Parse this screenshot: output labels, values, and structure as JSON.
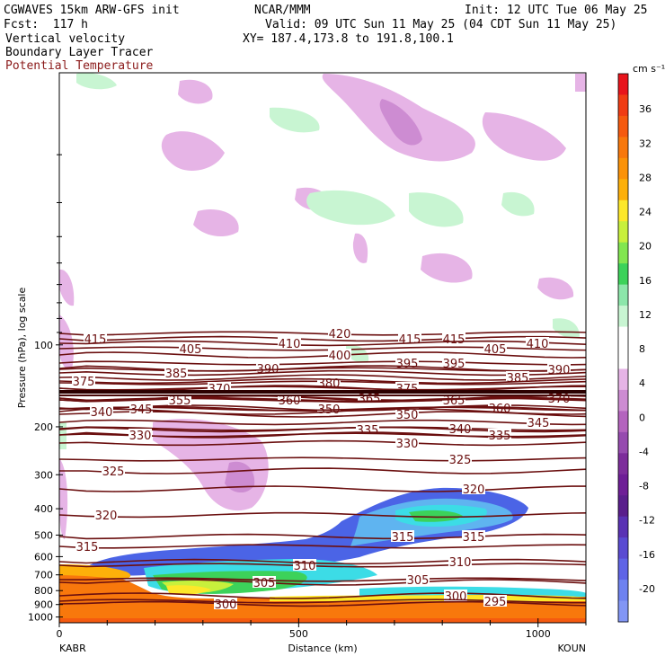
{
  "header": {
    "model": "CGWAVES 15km ARW-GFS init",
    "org": "NCAR/MMM",
    "init": "Init: 12 UTC Tue 06 May 25",
    "fcst": "Fcst:  117 h",
    "valid": "Valid: 09 UTC Sun 11 May 25 (04 CDT Sun 11 May 25)",
    "xy": "XY= 187.4,173.8 to 191.8,100.1",
    "field1": "Vertical velocity",
    "field2": "Boundary Layer Tracer",
    "field3": "Potential Temperature"
  },
  "colors": {
    "theta_line": "#6b0f0f",
    "field3_text": "#8b1a1a"
  },
  "chart_data": {
    "type": "contour",
    "xlabel": "Distance (km)",
    "ylabel": "Pressure (hPa), log scale",
    "x_ticks": [
      0,
      500,
      1000
    ],
    "xlim": [
      0,
      1100
    ],
    "y_ticks": [
      100,
      200,
      300,
      400,
      500,
      600,
      700,
      800,
      900,
      1000
    ],
    "ylim": [
      1050,
      10
    ],
    "y_scale": "log",
    "left_station": "KABR",
    "right_station": "KOUN",
    "colorbar": {
      "unit": "cm s⁻¹",
      "labels": [
        36,
        32,
        28,
        24,
        20,
        16,
        12,
        8,
        4,
        0,
        -4,
        -8,
        -12,
        -16,
        -20
      ],
      "colors": [
        "#e8141c",
        "#f03c14",
        "#f55a0f",
        "#f8780c",
        "#fb9208",
        "#fdb00a",
        "#fde82a",
        "#c8f03c",
        "#82e650",
        "#3cd25a",
        "#8ce6aa",
        "#c8f5d2",
        "#ffffff",
        "#ffffff",
        "#e6b4e6",
        "#cd8cd2",
        "#b464be",
        "#964baf",
        "#7d2d9b",
        "#6e1e96",
        "#5a1e8c",
        "#5a32b4",
        "#5a4bd2",
        "#5f64e6",
        "#6e82f0",
        "#8296f5"
      ]
    },
    "theta_lines": [
      {
        "value": 420,
        "y": 371,
        "lx": 378
      },
      {
        "value": 415,
        "y": 377,
        "lx": 106
      },
      {
        "value": 415,
        "y": 377,
        "lx": 456
      },
      {
        "value": 415,
        "y": 377,
        "lx": 505
      },
      {
        "value": 410,
        "y": 382,
        "lx": 322
      },
      {
        "value": 410,
        "y": 382,
        "lx": 598
      },
      {
        "value": 405,
        "y": 388,
        "lx": 212
      },
      {
        "value": 405,
        "y": 388,
        "lx": 551
      },
      {
        "value": 400,
        "y": 395,
        "lx": 378
      },
      {
        "value": 395,
        "y": 404,
        "lx": 453
      },
      {
        "value": 395,
        "y": 404,
        "lx": 505
      },
      {
        "value": 390,
        "y": 410,
        "lx": 298
      },
      {
        "value": 390,
        "y": 411,
        "lx": 622
      },
      {
        "value": 385,
        "y": 415,
        "lx": 196
      },
      {
        "value": 385,
        "y": 420,
        "lx": 576
      },
      {
        "value": 380,
        "y": 426,
        "lx": 366
      },
      {
        "value": 375,
        "y": 424,
        "lx": 93
      },
      {
        "value": 375,
        "y": 432,
        "lx": 453
      },
      {
        "value": 370,
        "y": 432,
        "lx": 244
      },
      {
        "value": 370,
        "y": 443,
        "lx": 622
      },
      {
        "value": 365,
        "y": 443,
        "lx": 411
      },
      {
        "value": 365,
        "y": 445,
        "lx": 505
      },
      {
        "value": 360,
        "y": 445,
        "lx": 322
      },
      {
        "value": 360,
        "y": 454,
        "lx": 556
      },
      {
        "value": 355,
        "y": 445,
        "lx": 200
      },
      {
        "value": 350,
        "y": 455,
        "lx": 366
      },
      {
        "value": 350,
        "y": 461,
        "lx": 453
      },
      {
        "value": 345,
        "y": 455,
        "lx": 157
      },
      {
        "value": 345,
        "y": 470,
        "lx": 599
      },
      {
        "value": 340,
        "y": 458,
        "lx": 113
      },
      {
        "value": 340,
        "y": 477,
        "lx": 512
      },
      {
        "value": 335,
        "y": 478,
        "lx": 409
      },
      {
        "value": 335,
        "y": 484,
        "lx": 556
      },
      {
        "value": 330,
        "y": 484,
        "lx": 156
      },
      {
        "value": 330,
        "y": 493,
        "lx": 453
      },
      {
        "value": 325,
        "y": 524,
        "lx": 126
      },
      {
        "value": 325,
        "y": 511,
        "lx": 512
      },
      {
        "value": 320,
        "y": 573,
        "lx": 118
      },
      {
        "value": 320,
        "y": 544,
        "lx": 527
      },
      {
        "value": 315,
        "y": 608,
        "lx": 97
      },
      {
        "value": 315,
        "y": 597,
        "lx": 448
      },
      {
        "value": 315,
        "y": 597,
        "lx": 527
      },
      {
        "value": 310,
        "y": 629,
        "lx": 339
      },
      {
        "value": 310,
        "y": 625,
        "lx": 512
      },
      {
        "value": 305,
        "y": 648,
        "lx": 294
      },
      {
        "value": 305,
        "y": 645,
        "lx": 465
      },
      {
        "value": 300,
        "y": 672,
        "lx": 251
      },
      {
        "value": 300,
        "y": 663,
        "lx": 507
      },
      {
        "value": 295,
        "y": 669,
        "lx": 551
      }
    ]
  }
}
